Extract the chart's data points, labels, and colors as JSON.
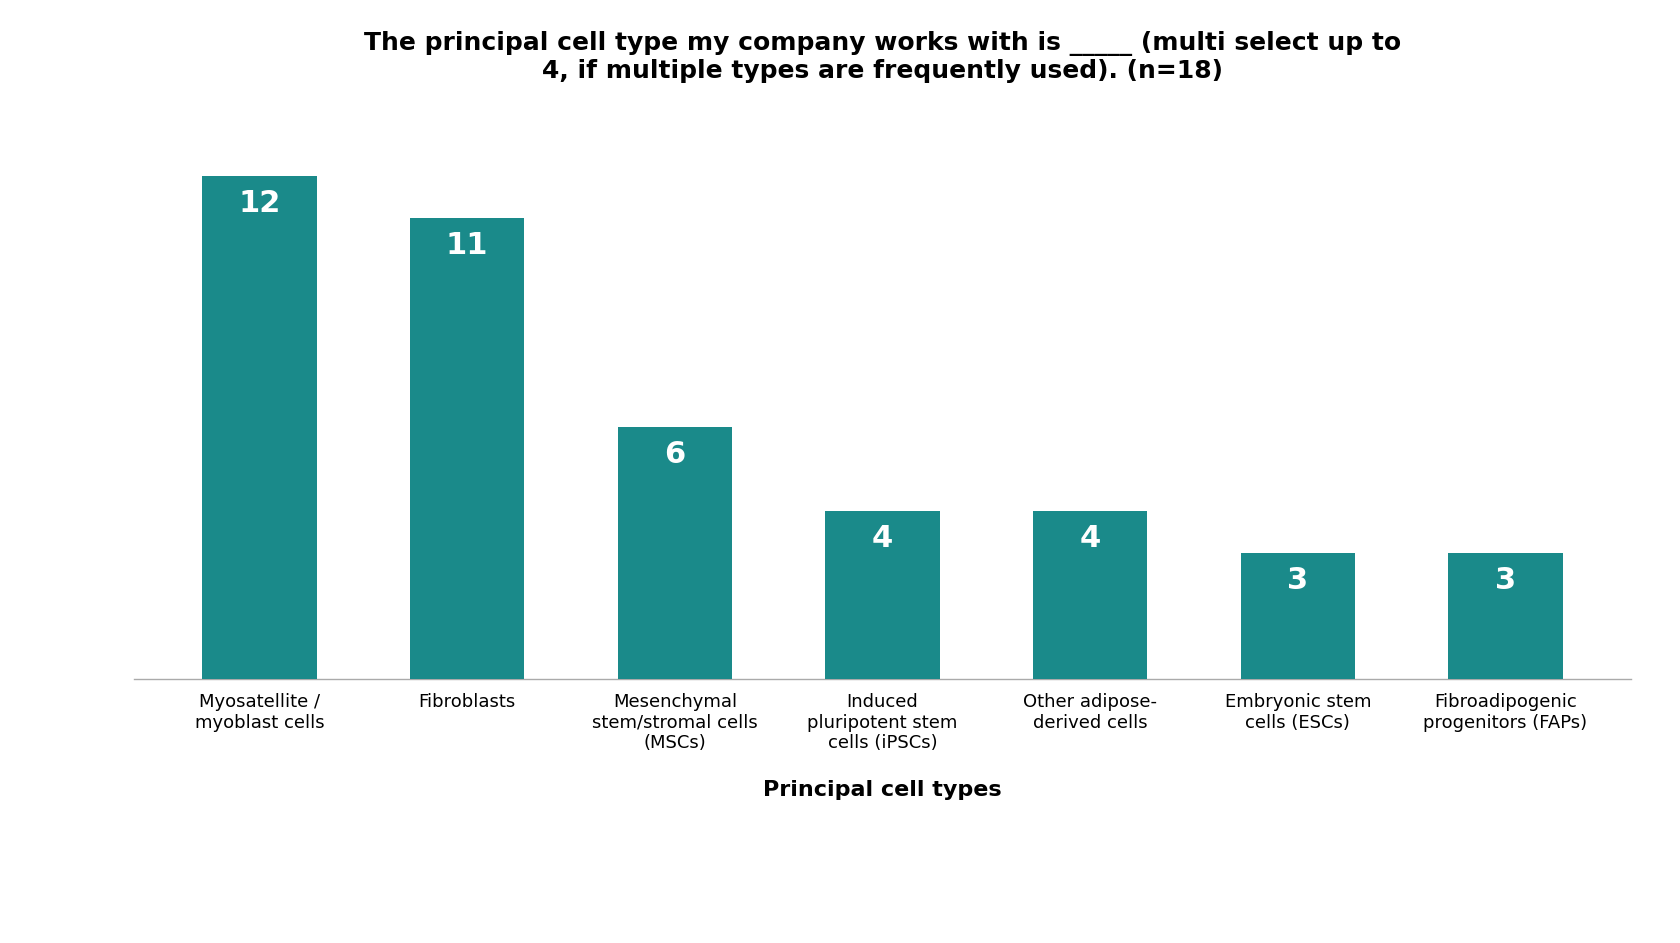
{
  "title_line1": "The principal cell type my company works with is _____ (multi select up to",
  "title_line2": "4, if multiple types are frequently used). (n=18)",
  "xlabel": "Principal cell types",
  "categories": [
    "Myosatellite /\nmyoblast cells",
    "Fibroblasts",
    "Mesenchymal\nstem/stromal cells\n(MSCs)",
    "Induced\npluripotent stem\ncells (iPSCs)",
    "Other adipose-\nderived cells",
    "Embryonic stem\ncells (ESCs)",
    "Fibroadipogenic\nprogenitors (FAPs)"
  ],
  "values": [
    12,
    11,
    6,
    4,
    4,
    3,
    3
  ],
  "bar_color": "#1a8a8a",
  "label_color": "#ffffff",
  "background_color": "#ffffff",
  "title_fontsize": 18,
  "axis_label_fontsize": 16,
  "tick_label_fontsize": 13,
  "value_label_fontsize": 22,
  "ylim": [
    0,
    13.5
  ],
  "bar_width": 0.55
}
